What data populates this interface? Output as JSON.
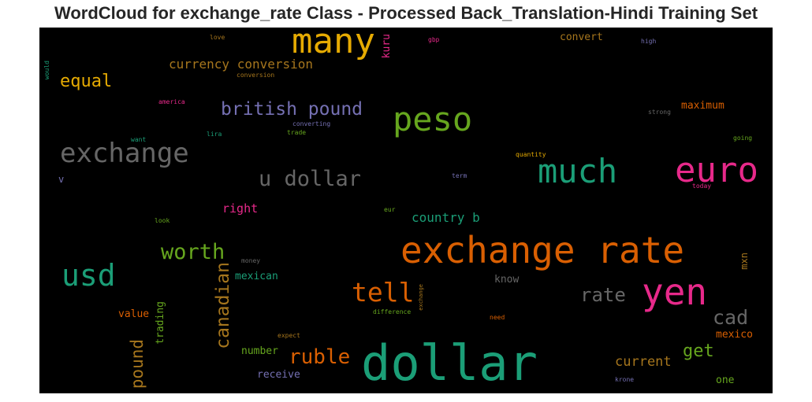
{
  "title": "WordCloud for exchange_rate Class - Processed Back_Translation-Hindi Training Set",
  "words": [
    {
      "text": "dollar",
      "color": "#1b9e77"
    },
    {
      "text": "exchange rate",
      "color": "#d95f02"
    },
    {
      "text": "many",
      "color": "#e6ab02"
    },
    {
      "text": "euro",
      "color": "#e7298a"
    },
    {
      "text": "yen",
      "color": "#e7298a"
    },
    {
      "text": "peso",
      "color": "#66a61e"
    },
    {
      "text": "much",
      "color": "#1b9e77"
    },
    {
      "text": "exchange",
      "color": "#666666"
    },
    {
      "text": "usd",
      "color": "#1b9e77"
    },
    {
      "text": "u dollar",
      "color": "#666666"
    },
    {
      "text": "british pound",
      "color": "#7570b3"
    },
    {
      "text": "tell",
      "color": "#d95f02"
    },
    {
      "text": "worth",
      "color": "#66a61e"
    },
    {
      "text": "rate",
      "color": "#666666"
    },
    {
      "text": "cad",
      "color": "#666666"
    },
    {
      "text": "equal",
      "color": "#e6ab02"
    },
    {
      "text": "currency conversion",
      "color": "#a6761d"
    },
    {
      "text": "ruble",
      "color": "#d95f02"
    },
    {
      "text": "canadian",
      "color": "#a6761d"
    },
    {
      "text": "pound",
      "color": "#a6761d"
    },
    {
      "text": "country b",
      "color": "#1b9e77"
    },
    {
      "text": "get",
      "color": "#66a61e"
    },
    {
      "text": "current",
      "color": "#a6761d"
    },
    {
      "text": "right",
      "color": "#e7298a"
    },
    {
      "text": "mexican",
      "color": "#1b9e77"
    },
    {
      "text": "maximum",
      "color": "#d95f02"
    },
    {
      "text": "convert",
      "color": "#a6761d"
    },
    {
      "text": "know",
      "color": "#666666"
    },
    {
      "text": "mexico",
      "color": "#d95f02"
    },
    {
      "text": "number",
      "color": "#66a61e"
    },
    {
      "text": "receive",
      "color": "#7570b3"
    },
    {
      "text": "value",
      "color": "#d95f02"
    },
    {
      "text": "one",
      "color": "#66a61e"
    },
    {
      "text": "trading",
      "color": "#66a61e"
    },
    {
      "text": "kuru",
      "color": "#e7298a"
    },
    {
      "text": "mxn",
      "color": "#a6761d"
    },
    {
      "text": "v",
      "color": "#7570b3"
    },
    {
      "text": "love",
      "color": "#a6761d"
    },
    {
      "text": "gbp",
      "color": "#e7298a"
    },
    {
      "text": "high",
      "color": "#7570b3"
    },
    {
      "text": "would",
      "color": "#1b9e77"
    },
    {
      "text": "conversion",
      "color": "#a6761d"
    },
    {
      "text": "america",
      "color": "#e7298a"
    },
    {
      "text": "strong",
      "color": "#666666"
    },
    {
      "text": "converting",
      "color": "#7570b3"
    },
    {
      "text": "want",
      "color": "#1b9e77"
    },
    {
      "text": "lira",
      "color": "#1b9e77"
    },
    {
      "text": "trade",
      "color": "#66a61e"
    },
    {
      "text": "going",
      "color": "#66a61e"
    },
    {
      "text": "quantity",
      "color": "#e6ab02"
    },
    {
      "text": "term",
      "color": "#7570b3"
    },
    {
      "text": "today",
      "color": "#e7298a"
    },
    {
      "text": "eur",
      "color": "#66a61e"
    },
    {
      "text": "look",
      "color": "#66a61e"
    },
    {
      "text": "money",
      "color": "#666666"
    },
    {
      "text": "difference",
      "color": "#66a61e"
    },
    {
      "text": "exchange",
      "color": "#a6761d"
    },
    {
      "text": "need",
      "color": "#d95f02"
    },
    {
      "text": "expect",
      "color": "#a6761d"
    },
    {
      "text": "krone",
      "color": "#7570b3"
    }
  ]
}
